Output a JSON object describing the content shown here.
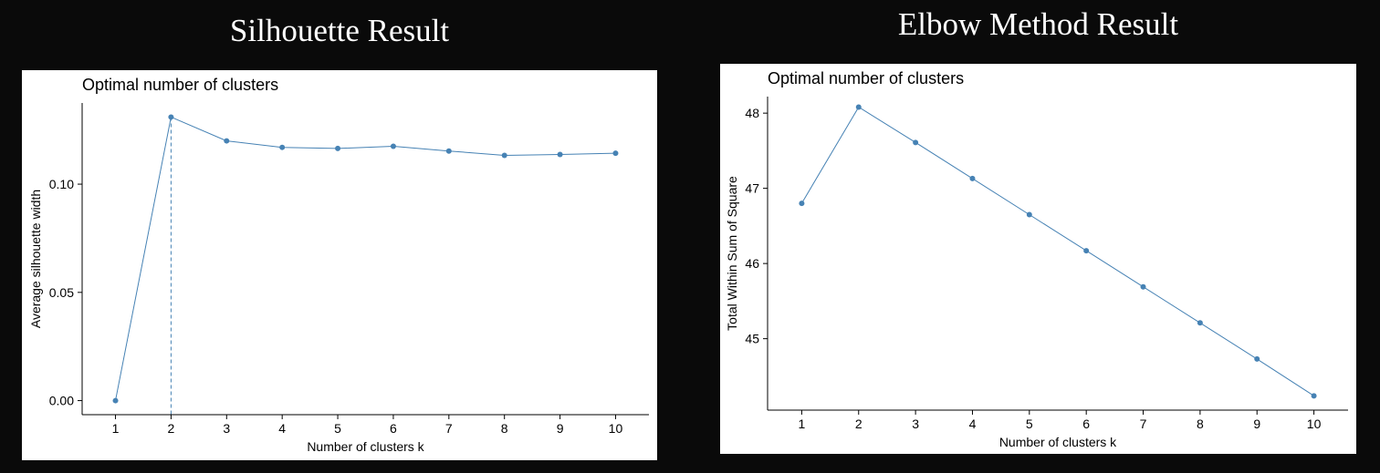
{
  "page": {
    "background": "#0a0a0a"
  },
  "headings": {
    "left": "Silhouette Result",
    "right": "Elbow Method Result"
  },
  "colors": {
    "series": "#4682b4",
    "axis": "#000000",
    "text": "#000000"
  },
  "chart_data": [
    {
      "type": "line",
      "title": "Optimal number of clusters",
      "xlabel": "Number of clusters k",
      "ylabel": "Average silhouette width",
      "x": [
        1,
        2,
        3,
        4,
        5,
        6,
        7,
        8,
        9,
        10
      ],
      "series": [
        {
          "values": [
            0.0,
            0.131,
            0.12,
            0.117,
            0.1165,
            0.1175,
            0.1153,
            0.1133,
            0.1137,
            0.1143
          ]
        }
      ],
      "xticks": [
        "1",
        "2",
        "3",
        "4",
        "5",
        "6",
        "7",
        "8",
        "9",
        "10"
      ],
      "yticks": [
        0.0,
        0.05,
        0.1
      ],
      "ytick_labels": [
        "0.00",
        "0.05",
        "0.10"
      ],
      "xlim": [
        0.4,
        10.6
      ],
      "ylim": [
        -0.0065,
        0.1375
      ],
      "vline": {
        "x": 2,
        "style": "dashed"
      },
      "grid": false,
      "legend": "none"
    },
    {
      "type": "line",
      "title": "Optimal number of clusters",
      "xlabel": "Number of clusters k",
      "ylabel": "Total Within Sum of Square",
      "x": [
        1,
        2,
        3,
        4,
        5,
        6,
        7,
        8,
        9,
        10
      ],
      "series": [
        {
          "values": [
            46.8,
            48.08,
            47.61,
            47.13,
            46.65,
            46.17,
            45.69,
            45.21,
            44.73,
            44.24
          ]
        }
      ],
      "xticks": [
        "1",
        "2",
        "3",
        "4",
        "5",
        "6",
        "7",
        "8",
        "9",
        "10"
      ],
      "yticks": [
        45,
        46,
        47,
        48
      ],
      "ytick_labels": [
        "45",
        "46",
        "47",
        "48"
      ],
      "xlim": [
        0.4,
        10.6
      ],
      "ylim": [
        44.05,
        48.22
      ],
      "grid": false,
      "legend": "none"
    }
  ]
}
